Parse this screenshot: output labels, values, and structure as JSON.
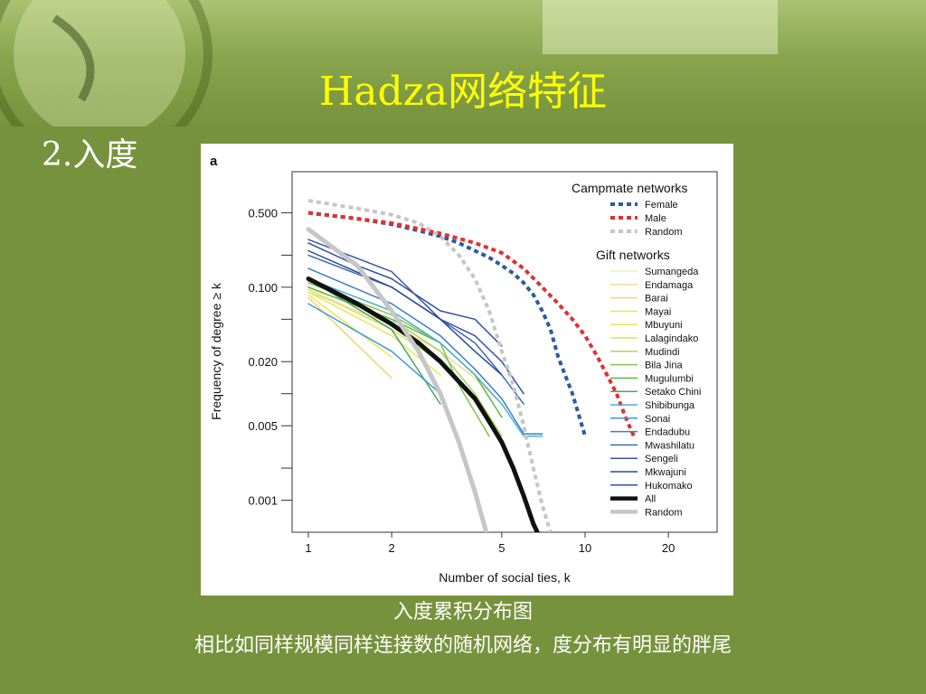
{
  "slide": {
    "title": "Hadza网络特征",
    "subtitle": "2.入度",
    "caption": "入度累积分布图",
    "note": "相比如同样规模同样连接数的随机网络，度分布有明显的胖尾"
  },
  "chart_data": {
    "type": "line",
    "panel_label": "a",
    "xlabel": "Number of social ties, k",
    "ylabel": "Frequency of degree ≥ k",
    "x_scale": "log",
    "y_scale": "log",
    "xlim": [
      1,
      30
    ],
    "ylim": [
      0.0005,
      1.0
    ],
    "x_ticks": [
      1,
      2,
      5,
      10,
      20
    ],
    "x_tick_labels": [
      "1",
      "2",
      "5",
      "10",
      "20"
    ],
    "y_ticks": [
      0.5,
      0.1,
      0.02,
      0.005,
      0.001
    ],
    "y_tick_labels": [
      "0.500",
      "0.100",
      "0.020",
      "0.005",
      "0.001"
    ],
    "grid": false,
    "legend_position": "top-right",
    "legend_groups": [
      {
        "title": "Campmate networks",
        "series": [
          "Female",
          "Male",
          "Random"
        ]
      },
      {
        "title": "Gift networks",
        "series": [
          "Sumangeda",
          "Endamaga",
          "Barai",
          "Mayai",
          "Mbuyuni",
          "Lalagindako",
          "Mudindi",
          "Bila Jina",
          "Mugulumbi",
          "Setako Chini",
          "Shibibunga",
          "Sonai",
          "Endadubu",
          "Mwashilatu",
          "Sengeli",
          "Mkwajuni",
          "Hukomako",
          "All",
          "Random"
        ]
      }
    ],
    "series": [
      {
        "name": "Female",
        "group": "Campmate networks",
        "color": "#2c5aa0",
        "dash": "dotted",
        "width": 4,
        "x": [
          1,
          1.5,
          2,
          2.5,
          3,
          3.5,
          4,
          4.5,
          5,
          5.5,
          6,
          6.5,
          7,
          7.5,
          8,
          9,
          10
        ],
        "y": [
          0.5,
          0.44,
          0.39,
          0.34,
          0.3,
          0.26,
          0.22,
          0.19,
          0.16,
          0.135,
          0.11,
          0.085,
          0.06,
          0.04,
          0.022,
          0.01,
          0.004
        ]
      },
      {
        "name": "Male",
        "group": "Campmate networks",
        "color": "#e03030",
        "dash": "dotted",
        "width": 4,
        "x": [
          1,
          1.5,
          2,
          3,
          4,
          5,
          6,
          7,
          8,
          9,
          10,
          11,
          12,
          13,
          14,
          15
        ],
        "y": [
          0.5,
          0.44,
          0.4,
          0.32,
          0.26,
          0.21,
          0.15,
          0.1,
          0.07,
          0.05,
          0.035,
          0.023,
          0.015,
          0.01,
          0.006,
          0.004
        ]
      },
      {
        "name": "Random",
        "group": "Campmate networks",
        "color": "#c6c6c6",
        "dash": "dotted",
        "width": 4,
        "x": [
          1,
          1.5,
          2,
          2.5,
          3,
          3.5,
          4,
          4.5,
          5,
          5.5,
          6,
          6.5,
          7,
          7.5
        ],
        "y": [
          0.65,
          0.55,
          0.48,
          0.4,
          0.3,
          0.2,
          0.12,
          0.06,
          0.025,
          0.012,
          0.005,
          0.002,
          0.0009,
          0.0005
        ]
      },
      {
        "name": "Sumangeda",
        "group": "Gift networks",
        "color": "#fbe7c4",
        "width": 1.5,
        "x": [
          1,
          2,
          3
        ],
        "y": [
          0.1,
          0.04,
          0.02
        ]
      },
      {
        "name": "Endamaga",
        "group": "Gift networks",
        "color": "#f9d9a0",
        "width": 1.5,
        "x": [
          1,
          2,
          3,
          4,
          5
        ],
        "y": [
          0.09,
          0.045,
          0.025,
          0.014,
          0.008
        ]
      },
      {
        "name": "Barai",
        "group": "Gift networks",
        "color": "#f7d070",
        "width": 1.5,
        "x": [
          1,
          2
        ],
        "y": [
          0.08,
          0.014
        ]
      },
      {
        "name": "Mayai",
        "group": "Gift networks",
        "color": "#f2e44a",
        "width": 1.5,
        "x": [
          1,
          2
        ],
        "y": [
          0.085,
          0.022
        ]
      },
      {
        "name": "Mbuyuni",
        "group": "Gift networks",
        "color": "#e6e85a",
        "width": 1.5,
        "x": [
          1,
          2,
          3
        ],
        "y": [
          0.09,
          0.035,
          0.015
        ]
      },
      {
        "name": "Lalagindako",
        "group": "Gift networks",
        "color": "#d6e36a",
        "width": 1.5,
        "x": [
          1,
          2,
          3
        ],
        "y": [
          0.095,
          0.04,
          0.02
        ]
      },
      {
        "name": "Mudindi",
        "group": "Gift networks",
        "color": "#a8d45a",
        "width": 1.5,
        "x": [
          1,
          2,
          3,
          4,
          5
        ],
        "y": [
          0.1,
          0.05,
          0.025,
          0.01,
          0.004
        ]
      },
      {
        "name": "Bila Jina",
        "group": "Gift networks",
        "color": "#7fc64a",
        "width": 1.5,
        "x": [
          1,
          2,
          3,
          3.5,
          4.5
        ],
        "y": [
          0.11,
          0.055,
          0.03,
          0.012,
          0.004
        ]
      },
      {
        "name": "Mugulumbi",
        "group": "Gift networks",
        "color": "#5fb84a",
        "width": 1.5,
        "x": [
          1,
          2,
          3,
          4,
          5
        ],
        "y": [
          0.1,
          0.05,
          0.03,
          0.015,
          0.006
        ]
      },
      {
        "name": "Setako Chini",
        "group": "Gift networks",
        "color": "#4aa85a",
        "width": 1.5,
        "x": [
          1,
          2,
          3
        ],
        "y": [
          0.12,
          0.04,
          0.008
        ]
      },
      {
        "name": "Shibibunga",
        "group": "Gift networks",
        "color": "#4ab0d0",
        "width": 1.5,
        "x": [
          1,
          2,
          3,
          4,
          5,
          6,
          7
        ],
        "y": [
          0.12,
          0.06,
          0.03,
          0.015,
          0.008,
          0.004,
          0.004
        ]
      },
      {
        "name": "Sonai",
        "group": "Gift networks",
        "color": "#3a9ad8",
        "width": 1.5,
        "x": [
          1,
          2,
          3
        ],
        "y": [
          0.07,
          0.025,
          0.01
        ]
      },
      {
        "name": "Endadubu",
        "group": "Gift networks",
        "color": "#3a7ec8",
        "width": 1.5,
        "x": [
          1,
          2,
          3,
          4,
          5,
          6,
          7
        ],
        "y": [
          0.15,
          0.07,
          0.035,
          0.017,
          0.009,
          0.0042,
          0.0042
        ]
      },
      {
        "name": "Mwashilatu",
        "group": "Gift networks",
        "color": "#3a6ab8",
        "width": 1.5,
        "x": [
          1,
          2,
          3,
          4,
          5,
          6
        ],
        "y": [
          0.2,
          0.1,
          0.05,
          0.03,
          0.015,
          0.008
        ]
      },
      {
        "name": "Sengeli",
        "group": "Gift networks",
        "color": "#3458a8",
        "width": 1.5,
        "x": [
          1,
          2,
          3,
          4,
          5,
          6
        ],
        "y": [
          0.28,
          0.14,
          0.05,
          0.035,
          0.02,
          0.01
        ]
      },
      {
        "name": "Mkwajuni",
        "group": "Gift networks",
        "color": "#2c4898",
        "width": 1.5,
        "x": [
          1,
          2,
          3,
          4,
          5
        ],
        "y": [
          0.22,
          0.1,
          0.05,
          0.025,
          0.015
        ]
      },
      {
        "name": "Hukomako",
        "group": "Gift networks",
        "color": "#3050a0",
        "width": 1.5,
        "x": [
          1,
          1.5,
          2,
          3,
          4,
          5
        ],
        "y": [
          0.26,
          0.16,
          0.12,
          0.06,
          0.05,
          0.028
        ]
      },
      {
        "name": "All",
        "group": "Gift networks",
        "color": "#111111",
        "width": 5,
        "x": [
          1,
          1.5,
          2,
          2.5,
          3,
          3.5,
          4,
          4.5,
          5,
          5.5,
          6,
          6.5,
          7
        ],
        "y": [
          0.12,
          0.07,
          0.045,
          0.03,
          0.02,
          0.013,
          0.009,
          0.0055,
          0.0035,
          0.002,
          0.0011,
          0.0006,
          0.0004
        ]
      },
      {
        "name": "Random",
        "group": "Gift networks",
        "color": "#c6c6c6",
        "width": 5,
        "x": [
          1,
          1.5,
          2,
          2.5,
          3,
          3.5,
          4,
          4.5
        ],
        "y": [
          0.35,
          0.16,
          0.06,
          0.025,
          0.01,
          0.0035,
          0.0012,
          0.0004
        ]
      }
    ]
  }
}
